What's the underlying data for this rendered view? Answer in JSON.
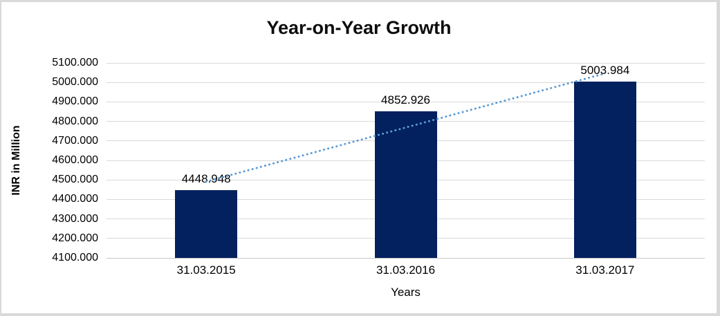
{
  "chart_data": {
    "type": "bar",
    "title": "Year-on-Year Growth",
    "xlabel": "Years",
    "ylabel": "INR in Million",
    "categories": [
      "31.03.2015",
      "31.03.2016",
      "31.03.2017"
    ],
    "series": [
      {
        "name": "INR in Million",
        "values": [
          4448.948,
          4852.926,
          5003.984
        ]
      }
    ],
    "value_labels": [
      "4448.948",
      "4852.926",
      "5003.984"
    ],
    "ylim": [
      4100,
      5100
    ],
    "ytick_step": 100,
    "ytick_labels": [
      "4100.000",
      "4200.000",
      "4300.000",
      "4400.000",
      "4500.000",
      "4600.000",
      "4700.000",
      "4800.000",
      "4900.000",
      "5000.000",
      "5100.000"
    ],
    "grid": true,
    "legend": "none",
    "trendline": {
      "type": "linear",
      "style": "dotted"
    },
    "colors": {
      "bar": "#02215e",
      "trendline": "#5b9bd5",
      "gridline": "#d9d9d9",
      "axis_line": "#c6c6c6",
      "text": "#000000",
      "title": "#0d0d0d",
      "frame_border": "#d9d9d9",
      "background": "#ffffff"
    }
  }
}
